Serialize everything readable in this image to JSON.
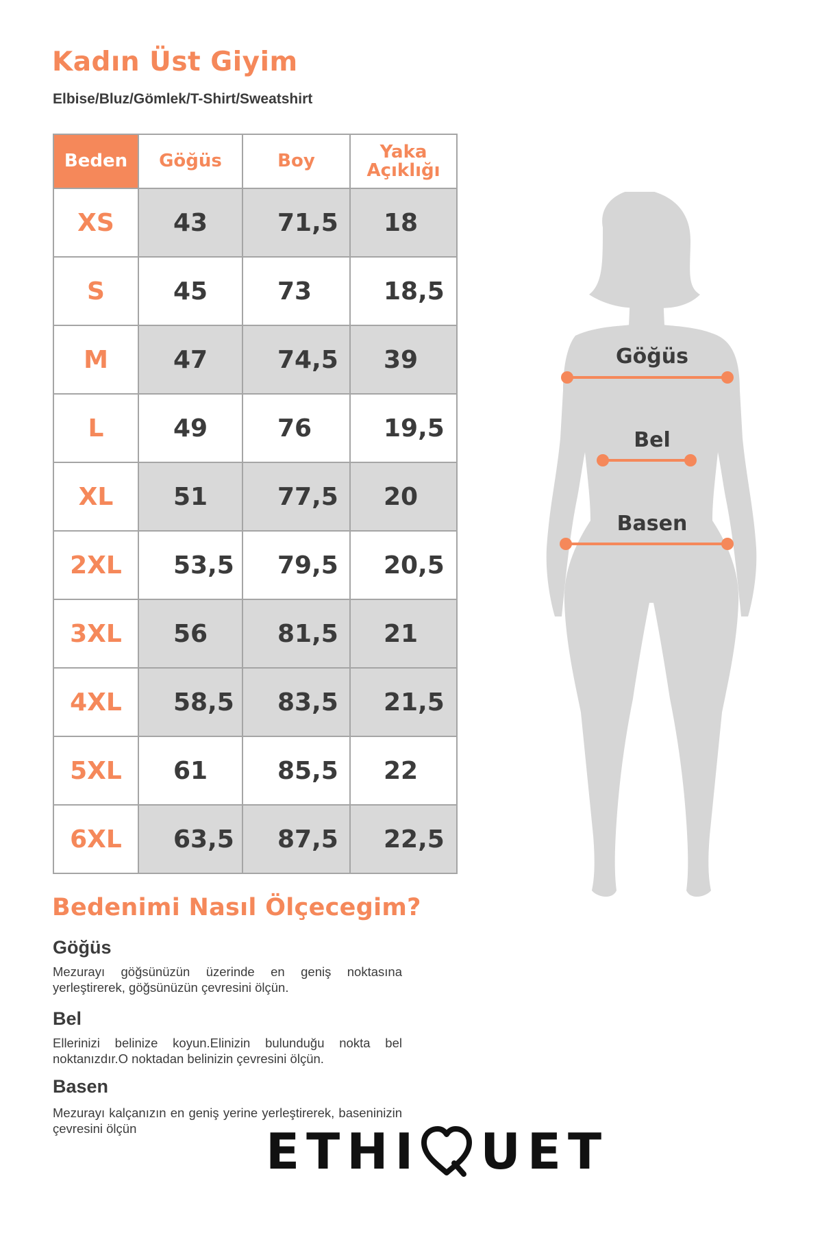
{
  "header": {
    "title": "Kadın Üst Giyim",
    "subtitle": "Elbise/Bluz/Gömlek/T-Shirt/Sweatshirt"
  },
  "table": {
    "headers": [
      "Beden",
      "Göğüs",
      "Boy",
      "Yaka\nAçıklığı"
    ],
    "rows": [
      {
        "size": "XS",
        "gogus": "43",
        "boy": "71,5",
        "yaka": "18"
      },
      {
        "size": "S",
        "gogus": "45",
        "boy": "73",
        "yaka": "18,5"
      },
      {
        "size": "M",
        "gogus": "47",
        "boy": "74,5",
        "yaka": "39"
      },
      {
        "size": "L",
        "gogus": "49",
        "boy": "76",
        "yaka": "19,5"
      },
      {
        "size": "XL",
        "gogus": "51",
        "boy": "77,5",
        "yaka": "20"
      },
      {
        "size": "2XL",
        "gogus": "53,5",
        "boy": "79,5",
        "yaka": "20,5"
      },
      {
        "size": "3XL",
        "gogus": "56",
        "boy": "81,5",
        "yaka": "21"
      },
      {
        "size": "4XL",
        "gogus": "58,5",
        "boy": "83,5",
        "yaka": "21,5"
      },
      {
        "size": "5XL",
        "gogus": "61",
        "boy": "85,5",
        "yaka": "22"
      },
      {
        "size": "6XL",
        "gogus": "63,5",
        "boy": "87,5",
        "yaka": "22,5"
      }
    ]
  },
  "howto": {
    "title": "Bedenimi Nasıl Ölçecegim?",
    "items": [
      {
        "heading": "Göğüs",
        "text": "Mezurayı göğsünüzün üzerinde en geniş noktasına yerleştirerek, göğsünüzün çevresini ölçün."
      },
      {
        "heading": "Bel",
        "text": "Ellerinizi belinize koyun.Elinizin bulunduğu nokta bel noktanızdır.O noktadan belinizin çevresini ölçün."
      },
      {
        "heading": "Basen",
        "text": "Mezurayı kalçanızın en geniş yerine yerleştirerek, baseninizin çevresini ölçün"
      }
    ]
  },
  "figure": {
    "labels": {
      "chest": "Göğüs",
      "waist": "Bel",
      "hip": "Basen"
    },
    "colors": {
      "silhouette": "#d6d6d6",
      "accent": "#f5885a"
    }
  },
  "brand": {
    "left": "ETHI",
    "right": "UET",
    "heart_icon": "heart-icon"
  }
}
